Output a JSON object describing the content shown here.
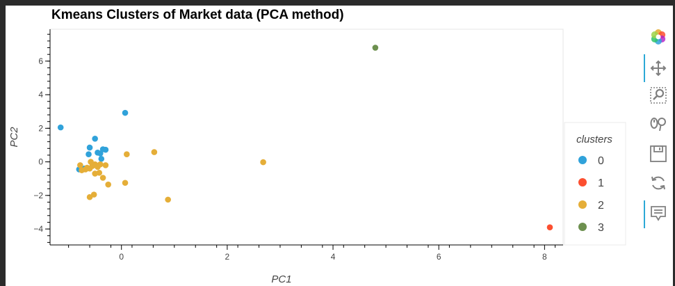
{
  "chart_data": {
    "type": "scatter",
    "title": "Kmeans Clusters of Market data (PCA method)",
    "xlabel": "PC1",
    "ylabel": "PC2",
    "xlim": [
      -1.35,
      8.35
    ],
    "ylim": [
      -4.95,
      7.9
    ],
    "xticks": [
      0,
      2,
      4,
      6,
      8
    ],
    "yticks": [
      -4,
      -2,
      0,
      2,
      4,
      6
    ],
    "xtick_labels": [
      "0",
      "2",
      "4",
      "6",
      "8"
    ],
    "ytick_labels": [
      "−4",
      "−2",
      "0",
      "2",
      "4",
      "6"
    ],
    "grid": false,
    "legend": {
      "title": "clusters",
      "placement": "right"
    },
    "series": [
      {
        "name": "0",
        "color": "#30a2da",
        "points": [
          [
            -1.15,
            2.05
          ],
          [
            0.07,
            2.92
          ],
          [
            -0.5,
            1.38
          ],
          [
            -0.6,
            0.85
          ],
          [
            -0.35,
            0.75
          ],
          [
            -0.3,
            0.72
          ],
          [
            -0.45,
            0.55
          ],
          [
            -0.4,
            0.5
          ],
          [
            -0.62,
            0.45
          ],
          [
            -0.38,
            0.18
          ],
          [
            -0.8,
            -0.45
          ],
          [
            -0.7,
            -0.4
          ]
        ]
      },
      {
        "name": "1",
        "color": "#fc4f30",
        "points": [
          [
            8.1,
            -3.9
          ]
        ]
      },
      {
        "name": "2",
        "color": "#e5ae38",
        "points": [
          [
            0.1,
            0.45
          ],
          [
            0.62,
            0.58
          ],
          [
            2.68,
            -0.02
          ],
          [
            0.88,
            -2.25
          ],
          [
            0.07,
            -1.25
          ],
          [
            -0.25,
            -1.35
          ],
          [
            -0.35,
            -0.95
          ],
          [
            -0.5,
            -0.7
          ],
          [
            -0.42,
            -0.65
          ],
          [
            -0.3,
            -0.2
          ],
          [
            -0.4,
            -0.15
          ],
          [
            -0.5,
            -0.15
          ],
          [
            -0.55,
            -0.25
          ],
          [
            -0.6,
            -0.4
          ],
          [
            -0.68,
            -0.45
          ],
          [
            -0.75,
            -0.5
          ],
          [
            -0.78,
            -0.2
          ],
          [
            -0.58,
            0.0
          ],
          [
            -0.52,
            -1.95
          ],
          [
            -0.6,
            -2.1
          ],
          [
            -0.45,
            -0.3
          ],
          [
            -0.65,
            -0.35
          ]
        ]
      },
      {
        "name": "3",
        "color": "#6d904f",
        "points": [
          [
            4.8,
            6.8
          ]
        ]
      }
    ]
  },
  "toolbar": {
    "tools": [
      "bokeh-logo-icon",
      "pan-icon",
      "box-zoom-icon",
      "wheel-zoom-icon",
      "save-icon",
      "reset-icon",
      "hover-icon"
    ]
  }
}
